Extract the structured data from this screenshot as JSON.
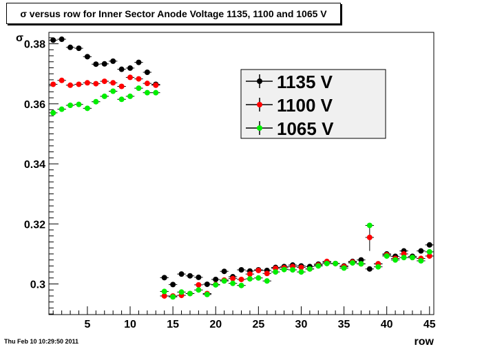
{
  "window": {
    "timestamp": "Thu Feb 10 10:29:50 2011"
  },
  "chart_data": {
    "type": "scatter",
    "title": "σ versus row for Inner Sector Anode Voltage 1135, 1100 and 1065 V",
    "xlabel": "row",
    "ylabel": "σ",
    "xlim": [
      0.5,
      45.5
    ],
    "ylim": [
      0.2898,
      0.3838
    ],
    "x_ticks": [
      5,
      10,
      15,
      20,
      25,
      30,
      35,
      40,
      45
    ],
    "y_ticks": [
      0.3,
      0.32,
      0.34,
      0.36,
      0.38
    ],
    "y_tick_labels": [
      "0.3",
      "0.32",
      "0.34",
      "0.36",
      "0.38"
    ],
    "grid": false,
    "legend_position": "top-right",
    "x": [
      1,
      2,
      3,
      4,
      5,
      6,
      7,
      8,
      9,
      10,
      11,
      12,
      13,
      14,
      15,
      16,
      17,
      18,
      19,
      20,
      21,
      22,
      23,
      24,
      25,
      26,
      27,
      28,
      29,
      30,
      31,
      32,
      33,
      34,
      35,
      36,
      37,
      38,
      39,
      40,
      41,
      42,
      43,
      44,
      45
    ],
    "series": [
      {
        "name": "1135 V",
        "color": "#000000",
        "values": [
          0.3812,
          0.3815,
          0.3788,
          0.3785,
          0.3757,
          0.3732,
          0.3733,
          0.3742,
          0.3715,
          0.3719,
          0.3738,
          0.3705,
          0.3665,
          0.3021,
          0.2998,
          0.3033,
          0.3027,
          0.3022,
          0.2999,
          0.3015,
          0.3042,
          0.3024,
          0.3047,
          0.3043,
          0.3047,
          0.3045,
          0.3055,
          0.3058,
          0.3063,
          0.306,
          0.3058,
          0.3066,
          0.3072,
          0.3068,
          0.306,
          0.3075,
          0.308,
          0.305,
          0.3067,
          0.31,
          0.3092,
          0.311,
          0.3092,
          0.311,
          0.313
        ],
        "errors": [
          0.0005,
          0.0005,
          0.0005,
          0.0005,
          0.0005,
          0.0005,
          0.0005,
          0.0005,
          0.0005,
          0.0005,
          0.0005,
          0.0005,
          0.0005,
          0.0004,
          0.0004,
          0.0004,
          0.0004,
          0.0004,
          0.0004,
          0.0004,
          0.0004,
          0.0004,
          0.0004,
          0.0004,
          0.0004,
          0.0004,
          0.0004,
          0.0004,
          0.0004,
          0.0004,
          0.0004,
          0.0004,
          0.0004,
          0.0004,
          0.0004,
          0.0004,
          0.0004,
          0.0004,
          0.0004,
          0.0004,
          0.0004,
          0.0004,
          0.0004,
          0.0004,
          0.0007
        ]
      },
      {
        "name": "1100 V",
        "color": "#ff0000",
        "values": [
          0.3665,
          0.3678,
          0.3662,
          0.3665,
          0.367,
          0.3667,
          0.3675,
          0.367,
          0.3658,
          0.3688,
          0.3683,
          0.3668,
          0.3662,
          0.296,
          0.296,
          0.2962,
          0.2968,
          0.2997,
          0.2968,
          0.2998,
          0.3013,
          0.3018,
          0.3015,
          0.3033,
          0.3045,
          0.3035,
          0.3052,
          0.3054,
          0.3058,
          0.3055,
          0.305,
          0.3063,
          0.3075,
          0.3068,
          0.3058,
          0.3073,
          0.3067,
          0.3155,
          0.3067,
          0.3097,
          0.3085,
          0.31,
          0.3088,
          0.3085,
          0.3093
        ],
        "errors": [
          0.0005,
          0.0005,
          0.0005,
          0.0005,
          0.0005,
          0.0005,
          0.0005,
          0.0005,
          0.0005,
          0.0005,
          0.0005,
          0.0005,
          0.0005,
          0.0004,
          0.0004,
          0.0004,
          0.0004,
          0.0004,
          0.0004,
          0.0004,
          0.0004,
          0.0004,
          0.0004,
          0.0004,
          0.0004,
          0.0004,
          0.0004,
          0.0004,
          0.0004,
          0.0004,
          0.0004,
          0.0004,
          0.0004,
          0.0004,
          0.0004,
          0.0004,
          0.0004,
          0.0045,
          0.0004,
          0.0004,
          0.0004,
          0.0004,
          0.0004,
          0.0004,
          0.0004
        ]
      },
      {
        "name": "1065 V",
        "color": "#00ee00",
        "values": [
          0.357,
          0.3582,
          0.3595,
          0.3598,
          0.3585,
          0.3607,
          0.3625,
          0.3642,
          0.3615,
          0.3625,
          0.3652,
          0.3637,
          0.3637,
          0.2975,
          0.2957,
          0.2973,
          0.2968,
          0.298,
          0.2965,
          0.2997,
          0.301,
          0.3002,
          0.2995,
          0.3017,
          0.302,
          0.301,
          0.304,
          0.3048,
          0.3047,
          0.304,
          0.305,
          0.306,
          0.3068,
          0.3068,
          0.3053,
          0.307,
          0.3067,
          0.3195,
          0.3057,
          0.3093,
          0.308,
          0.3088,
          0.3088,
          0.3077,
          0.3107
        ],
        "errors": [
          0.0005,
          0.0005,
          0.0005,
          0.0005,
          0.0005,
          0.0005,
          0.0005,
          0.0005,
          0.0005,
          0.0005,
          0.0005,
          0.0005,
          0.0005,
          0.0004,
          0.0004,
          0.0004,
          0.0004,
          0.0004,
          0.0004,
          0.0004,
          0.0004,
          0.0004,
          0.0004,
          0.0004,
          0.0004,
          0.0004,
          0.0004,
          0.0004,
          0.0004,
          0.0004,
          0.0004,
          0.0004,
          0.0004,
          0.0004,
          0.0004,
          0.0004,
          0.0004,
          0.0004,
          0.0004,
          0.0004,
          0.0004,
          0.0004,
          0.0004,
          0.0004,
          0.0004
        ]
      }
    ]
  }
}
